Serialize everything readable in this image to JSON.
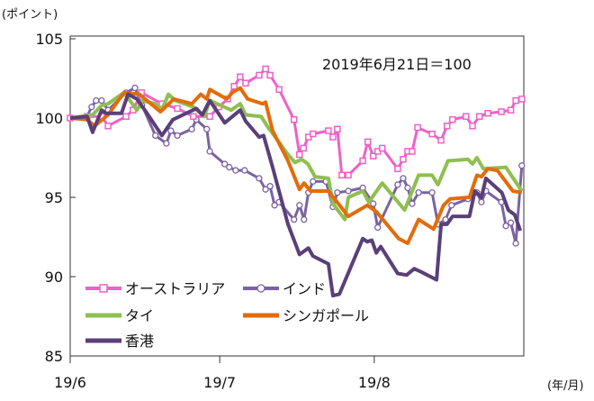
{
  "chart_data": {
    "type": "line",
    "ylabel": "(ポイント)",
    "xlabel": "(年/月)",
    "annotation": "2019年6月21日＝100",
    "ylim": [
      85,
      105
    ],
    "yticks": [
      85,
      90,
      95,
      100,
      105
    ],
    "xlim": [
      0,
      91
    ],
    "xticks": [
      {
        "label": "19/6",
        "x": 0
      },
      {
        "label": "19/7",
        "x": 30
      },
      {
        "label": "19/8",
        "x": 61
      }
    ],
    "legend_position": "bottom-left inside",
    "series": [
      {
        "name": "オーストラリア",
        "color": "#f060c8",
        "marker": "square",
        "points": [
          [
            0,
            100.0
          ],
          [
            3.4,
            100.1
          ],
          [
            6.3,
            100.1
          ],
          [
            7.6,
            99.5
          ],
          [
            11.2,
            100.1
          ],
          [
            12.6,
            100.5
          ],
          [
            14.3,
            101.6
          ],
          [
            18.4,
            100.9
          ],
          [
            21.5,
            100.6
          ],
          [
            24.7,
            100.1
          ],
          [
            28.0,
            100.1
          ],
          [
            29.8,
            100.7
          ],
          [
            31.6,
            101.2
          ],
          [
            32.9,
            102.0
          ],
          [
            34.1,
            102.6
          ],
          [
            35.2,
            102.2
          ],
          [
            37.9,
            102.7
          ],
          [
            39.2,
            103.1
          ],
          [
            40.1,
            102.7
          ],
          [
            41.9,
            101.8
          ],
          [
            44.9,
            99.9
          ],
          [
            46.0,
            97.7
          ],
          [
            46.8,
            98.1
          ],
          [
            47.8,
            98.8
          ],
          [
            48.7,
            99.0
          ],
          [
            51.8,
            99.2
          ],
          [
            52.7,
            98.8
          ],
          [
            53.6,
            99.3
          ],
          [
            54.5,
            96.4
          ],
          [
            55.8,
            96.4
          ],
          [
            58.7,
            97.3
          ],
          [
            59.7,
            98.5
          ],
          [
            60.8,
            97.6
          ],
          [
            61.7,
            97.9
          ],
          [
            62.6,
            98.1
          ],
          [
            65.7,
            96.8
          ],
          [
            66.8,
            97.4
          ],
          [
            67.7,
            97.9
          ],
          [
            68.6,
            97.9
          ],
          [
            69.7,
            99.4
          ],
          [
            72.6,
            99.0
          ],
          [
            74.4,
            98.6
          ],
          [
            75.6,
            99.5
          ],
          [
            76.7,
            99.9
          ],
          [
            79.4,
            100.1
          ],
          [
            80.7,
            99.5
          ],
          [
            82.1,
            100.1
          ],
          [
            83.8,
            100.3
          ],
          [
            86.5,
            100.4
          ],
          [
            88.4,
            100.5
          ],
          [
            89.4,
            101.1
          ],
          [
            90.6,
            101.2
          ]
        ]
      },
      {
        "name": "インド",
        "color": "#7b62a3",
        "marker": "circle",
        "points": [
          [
            0,
            100.0
          ],
          [
            3.4,
            100.1
          ],
          [
            4.3,
            100.7
          ],
          [
            5.2,
            101.1
          ],
          [
            6.3,
            101.1
          ],
          [
            7.6,
            100.5
          ],
          [
            11.2,
            101.6
          ],
          [
            13.0,
            101.9
          ],
          [
            14.4,
            100.8
          ],
          [
            17.1,
            98.9
          ],
          [
            19.3,
            98.4
          ],
          [
            20.2,
            99.2
          ],
          [
            21.5,
            98.9
          ],
          [
            24.4,
            99.3
          ],
          [
            25.3,
            99.9
          ],
          [
            27.4,
            99.3
          ],
          [
            28.0,
            97.9
          ],
          [
            31.0,
            97.1
          ],
          [
            31.9,
            96.9
          ],
          [
            33.2,
            96.7
          ],
          [
            35.0,
            96.7
          ],
          [
            37.9,
            96.2
          ],
          [
            39.2,
            95.5
          ],
          [
            40.1,
            95.7
          ],
          [
            41.0,
            94.5
          ],
          [
            41.9,
            94.7
          ],
          [
            44.9,
            93.6
          ],
          [
            46.0,
            94.5
          ],
          [
            46.9,
            93.6
          ],
          [
            47.8,
            95.3
          ],
          [
            48.7,
            96.0
          ],
          [
            51.3,
            96.0
          ],
          [
            52.7,
            94.4
          ],
          [
            53.6,
            95.3
          ],
          [
            55.8,
            95.4
          ],
          [
            58.7,
            95.6
          ],
          [
            60.8,
            94.6
          ],
          [
            61.7,
            93.1
          ],
          [
            65.7,
            95.8
          ],
          [
            66.8,
            96.2
          ],
          [
            67.7,
            95.6
          ],
          [
            68.6,
            94.6
          ],
          [
            69.9,
            95.3
          ],
          [
            72.6,
            95.3
          ],
          [
            73.8,
            93.3
          ],
          [
            75.3,
            93.6
          ],
          [
            76.5,
            94.5
          ],
          [
            79.8,
            94.9
          ],
          [
            81.6,
            95.3
          ],
          [
            82.5,
            94.7
          ],
          [
            83.4,
            95.4
          ],
          [
            86.5,
            94.7
          ],
          [
            87.4,
            93.2
          ],
          [
            88.4,
            93.4
          ],
          [
            89.4,
            92.1
          ],
          [
            90.6,
            97.0
          ]
        ]
      },
      {
        "name": "タイ",
        "color": "#8fbf50",
        "marker": "none",
        "points": [
          [
            0,
            100.0
          ],
          [
            4.5,
            100.2
          ],
          [
            6.3,
            100.8
          ],
          [
            7.6,
            100.9
          ],
          [
            10.8,
            101.6
          ],
          [
            13.4,
            100.5
          ],
          [
            14.4,
            101.1
          ],
          [
            17.1,
            100.9
          ],
          [
            18.4,
            100.5
          ],
          [
            19.7,
            101.5
          ],
          [
            21.1,
            101.1
          ],
          [
            24.7,
            100.7
          ],
          [
            26.9,
            100.1
          ],
          [
            28.0,
            101.1
          ],
          [
            32.3,
            100.5
          ],
          [
            34.1,
            100.9
          ],
          [
            35.2,
            100.2
          ],
          [
            38.3,
            100.1
          ],
          [
            39.5,
            99.5
          ],
          [
            43.7,
            97.7
          ],
          [
            45.1,
            97.2
          ],
          [
            46.4,
            97.4
          ],
          [
            47.7,
            97.1
          ],
          [
            49.1,
            96.3
          ],
          [
            51.8,
            96.2
          ],
          [
            52.7,
            94.6
          ],
          [
            55.1,
            93.6
          ],
          [
            55.8,
            95.0
          ],
          [
            58.7,
            95.4
          ],
          [
            59.9,
            94.7
          ],
          [
            62.6,
            95.9
          ],
          [
            67.1,
            94.2
          ],
          [
            69.9,
            96.4
          ],
          [
            72.6,
            96.4
          ],
          [
            73.8,
            95.8
          ],
          [
            75.8,
            97.3
          ],
          [
            79.8,
            97.4
          ],
          [
            80.7,
            97.1
          ],
          [
            81.6,
            97.5
          ],
          [
            82.9,
            96.8
          ],
          [
            87.4,
            96.9
          ],
          [
            90.6,
            95.4
          ]
        ]
      },
      {
        "name": "シンガポール",
        "color": "#e36c0a",
        "marker": "none",
        "points": [
          [
            0,
            100.0
          ],
          [
            3.4,
            99.9
          ],
          [
            4.9,
            99.5
          ],
          [
            7.6,
            100.2
          ],
          [
            10.8,
            101.6
          ],
          [
            13.9,
            101.5
          ],
          [
            18.1,
            100.4
          ],
          [
            20.8,
            101.2
          ],
          [
            24.4,
            100.9
          ],
          [
            26.2,
            101.5
          ],
          [
            27.4,
            101.2
          ],
          [
            28.0,
            101.8
          ],
          [
            31.4,
            101.2
          ],
          [
            32.5,
            101.6
          ],
          [
            34.1,
            101.9
          ],
          [
            35.6,
            101.2
          ],
          [
            38.6,
            100.9
          ],
          [
            39.2,
            101.0
          ],
          [
            40.6,
            99.2
          ],
          [
            43.7,
            97.3
          ],
          [
            46.0,
            95.5
          ],
          [
            46.9,
            95.9
          ],
          [
            48.2,
            95.4
          ],
          [
            51.8,
            95.4
          ],
          [
            55.8,
            93.8
          ],
          [
            59.6,
            94.5
          ],
          [
            61.4,
            94.1
          ],
          [
            65.9,
            92.4
          ],
          [
            67.7,
            92.1
          ],
          [
            69.9,
            93.6
          ],
          [
            72.9,
            93.0
          ],
          [
            74.9,
            94.5
          ],
          [
            76.2,
            94.9
          ],
          [
            80.1,
            95.0
          ],
          [
            81.6,
            96.4
          ],
          [
            82.5,
            96.3
          ],
          [
            83.8,
            96.8
          ],
          [
            85.7,
            96.7
          ],
          [
            88.8,
            95.4
          ],
          [
            90.6,
            95.3
          ]
        ]
      },
      {
        "name": "香港",
        "color": "#5a3f78",
        "marker": "none",
        "points": [
          [
            0,
            100.0
          ],
          [
            3.4,
            100.1
          ],
          [
            4.5,
            99.1
          ],
          [
            6.3,
            100.5
          ],
          [
            7.2,
            100.3
          ],
          [
            10.3,
            100.3
          ],
          [
            11.6,
            101.5
          ],
          [
            13.4,
            101.2
          ],
          [
            15.2,
            100.4
          ],
          [
            18.4,
            98.9
          ],
          [
            20.6,
            99.9
          ],
          [
            25.3,
            100.6
          ],
          [
            26.5,
            100.2
          ],
          [
            28.0,
            101.1
          ],
          [
            31.0,
            99.7
          ],
          [
            34.1,
            100.5
          ],
          [
            35.2,
            99.8
          ],
          [
            37.9,
            98.8
          ],
          [
            38.8,
            98.9
          ],
          [
            40.6,
            96.9
          ],
          [
            43.7,
            93.3
          ],
          [
            46.0,
            91.4
          ],
          [
            47.8,
            91.8
          ],
          [
            48.7,
            91.3
          ],
          [
            51.8,
            90.8
          ],
          [
            52.7,
            88.8
          ],
          [
            54.0,
            88.9
          ],
          [
            58.7,
            92.4
          ],
          [
            59.6,
            92.2
          ],
          [
            60.5,
            92.3
          ],
          [
            61.4,
            91.5
          ],
          [
            62.3,
            91.9
          ],
          [
            65.7,
            90.2
          ],
          [
            67.5,
            90.1
          ],
          [
            69.0,
            90.5
          ],
          [
            70.4,
            90.3
          ],
          [
            73.5,
            89.8
          ],
          [
            74.4,
            93.3
          ],
          [
            75.6,
            93.3
          ],
          [
            76.7,
            93.8
          ],
          [
            80.1,
            93.8
          ],
          [
            81.2,
            95.4
          ],
          [
            82.5,
            95.0
          ],
          [
            83.4,
            96.2
          ],
          [
            86.6,
            95.3
          ],
          [
            87.9,
            94.2
          ],
          [
            89.2,
            93.9
          ],
          [
            90.3,
            92.9
          ]
        ]
      }
    ]
  }
}
